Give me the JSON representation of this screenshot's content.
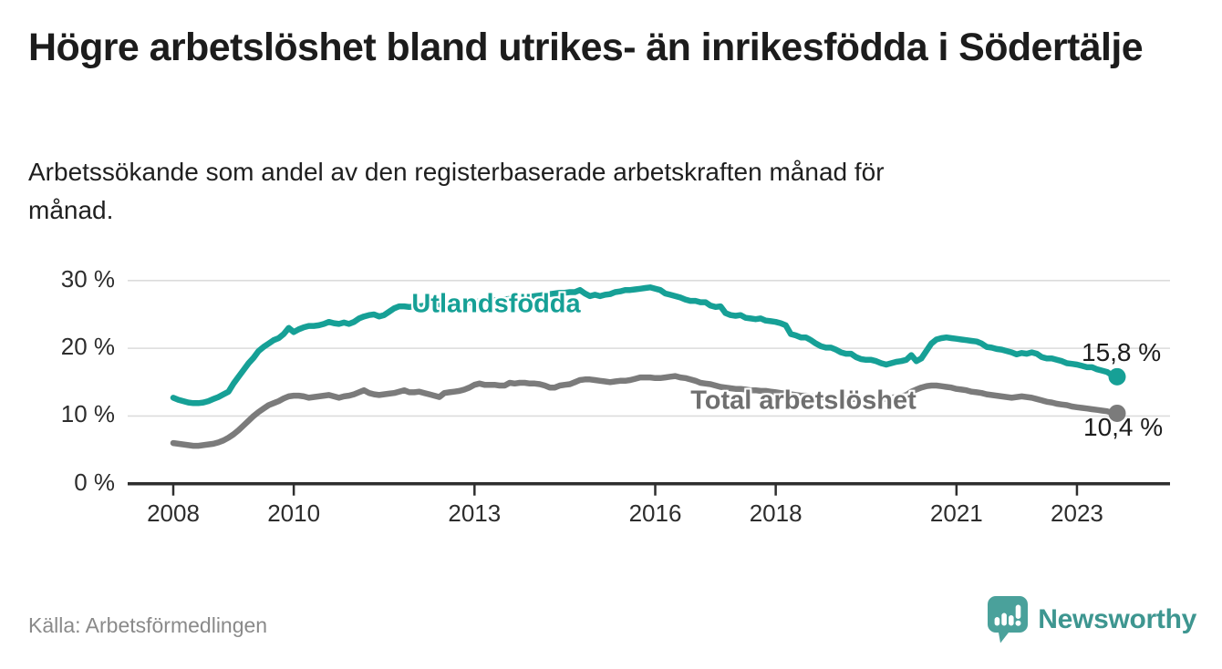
{
  "header": {
    "title": "Högre arbetslöshet bland utrikes- än inrikesfödda i Södertälje",
    "subtitle": "Arbetssökande som andel av den registerbaserade arbetskraften månad för månad."
  },
  "footer": {
    "source": "Källa: Arbetsförmedlingen",
    "logo_text": "Newsworthy",
    "logo_icon": "newsworthy-speech-bubble-bar-chart-icon"
  },
  "colors": {
    "foreign_born_line": "#16a096",
    "total_line": "#7b7b7b",
    "total_label": "#6f6f6f",
    "axis": "#2e2e2e",
    "gridline": "#dcdcdc",
    "title_text": "#1c1c1c",
    "source_text": "#8a8a8a",
    "logo_teal": "#4aa19b",
    "logo_text_teal": "#3e9690"
  },
  "chart_data": {
    "type": "line",
    "unit": "%",
    "frequency": "monthly",
    "x_start": "2008-01",
    "x_end": "2023-09",
    "grid": true,
    "legend_position": "inline-labels-on-lines",
    "ylim": [
      0,
      31.5
    ],
    "y_ticks": [
      {
        "label": "0 %",
        "value": 0
      },
      {
        "label": "10 %",
        "value": 10
      },
      {
        "label": "20 %",
        "value": 20
      },
      {
        "label": "30 %",
        "value": 30
      }
    ],
    "x_ticks": [
      {
        "label": "2008",
        "year": 2008
      },
      {
        "label": "2010",
        "year": 2010
      },
      {
        "label": "2013",
        "year": 2013
      },
      {
        "label": "2016",
        "year": 2016
      },
      {
        "label": "2018",
        "year": 2018
      },
      {
        "label": "2021",
        "year": 2021
      },
      {
        "label": "2023",
        "year": 2023
      }
    ],
    "series": [
      {
        "name": "Utlandsfödda",
        "color": "#16a096",
        "end_label": "15,8 %",
        "end_value": 15.8,
        "values": [
          12.7,
          12.4,
          12.2,
          12.0,
          11.9,
          11.9,
          12.0,
          12.2,
          12.5,
          12.8,
          13.2,
          13.6,
          14.8,
          15.8,
          16.8,
          17.8,
          18.6,
          19.6,
          20.2,
          20.7,
          21.2,
          21.5,
          22.1,
          23.0,
          22.4,
          22.8,
          23.1,
          23.3,
          23.3,
          23.4,
          23.6,
          23.9,
          23.7,
          23.6,
          23.8,
          23.6,
          23.9,
          24.4,
          24.7,
          24.9,
          25.0,
          24.7,
          24.9,
          25.4,
          25.9,
          26.2,
          26.2,
          26.1,
          26.2,
          26.2,
          26.3,
          26.4,
          26.4,
          26.5,
          26.5,
          26.6,
          26.7,
          26.7,
          26.8,
          26.8,
          26.9,
          26.9,
          27.0,
          27.0,
          27.1,
          27.1,
          27.2,
          27.3,
          27.3,
          27.4,
          27.5,
          27.6,
          27.7,
          27.8,
          27.9,
          28.0,
          28.1,
          28.2,
          28.2,
          28.3,
          28.3,
          28.6,
          28.1,
          27.7,
          27.9,
          27.7,
          27.9,
          28.0,
          28.3,
          28.4,
          28.6,
          28.6,
          28.7,
          28.8,
          28.9,
          29.0,
          28.8,
          28.6,
          28.1,
          27.9,
          27.7,
          27.5,
          27.2,
          27.0,
          27.0,
          26.8,
          26.8,
          26.3,
          26.1,
          26.2,
          25.2,
          24.9,
          24.8,
          24.9,
          24.5,
          24.4,
          24.3,
          24.4,
          24.1,
          24.0,
          23.9,
          23.7,
          23.4,
          22.1,
          21.9,
          21.6,
          21.6,
          21.2,
          20.7,
          20.3,
          20.1,
          20.1,
          19.8,
          19.4,
          19.2,
          19.2,
          18.7,
          18.4,
          18.3,
          18.3,
          18.1,
          17.8,
          17.6,
          17.8,
          18.0,
          18.1,
          18.3,
          19.0,
          18.1,
          18.5,
          19.6,
          20.7,
          21.3,
          21.5,
          21.6,
          21.5,
          21.4,
          21.3,
          21.2,
          21.1,
          21.0,
          20.7,
          20.2,
          20.1,
          19.9,
          19.8,
          19.6,
          19.4,
          19.1,
          19.3,
          19.2,
          19.4,
          19.2,
          18.7,
          18.5,
          18.5,
          18.3,
          18.1,
          17.8,
          17.7,
          17.6,
          17.4,
          17.2,
          17.2,
          16.9,
          16.7,
          16.5,
          16.0,
          15.8
        ]
      },
      {
        "name": "Total arbetslöshet",
        "color": "#7b7b7b",
        "end_label": "10,4 %",
        "end_value": 10.4,
        "values": [
          6.0,
          5.9,
          5.8,
          5.7,
          5.6,
          5.6,
          5.7,
          5.8,
          5.9,
          6.1,
          6.4,
          6.8,
          7.3,
          7.9,
          8.6,
          9.3,
          10.0,
          10.6,
          11.1,
          11.6,
          11.9,
          12.2,
          12.6,
          12.9,
          13.0,
          13.0,
          12.9,
          12.7,
          12.8,
          12.9,
          13.0,
          13.1,
          12.9,
          12.7,
          12.9,
          13.0,
          13.2,
          13.5,
          13.8,
          13.4,
          13.2,
          13.1,
          13.2,
          13.3,
          13.4,
          13.6,
          13.8,
          13.5,
          13.5,
          13.6,
          13.4,
          13.2,
          13.0,
          12.8,
          13.4,
          13.5,
          13.6,
          13.7,
          13.9,
          14.2,
          14.6,
          14.8,
          14.6,
          14.6,
          14.6,
          14.5,
          14.5,
          14.9,
          14.8,
          14.9,
          14.9,
          14.8,
          14.8,
          14.7,
          14.5,
          14.2,
          14.2,
          14.5,
          14.6,
          14.7,
          15.0,
          15.3,
          15.4,
          15.4,
          15.3,
          15.2,
          15.1,
          15.0,
          15.1,
          15.2,
          15.2,
          15.3,
          15.5,
          15.7,
          15.7,
          15.7,
          15.6,
          15.6,
          15.7,
          15.8,
          15.9,
          15.7,
          15.6,
          15.4,
          15.2,
          14.9,
          14.8,
          14.7,
          14.5,
          14.3,
          14.2,
          14.1,
          14.0,
          14.0,
          13.9,
          13.8,
          13.8,
          13.7,
          13.7,
          13.6,
          13.5,
          13.4,
          13.3,
          13.2,
          13.1,
          13.0,
          13.0,
          12.9,
          12.8,
          12.8,
          12.7,
          12.7,
          12.7,
          12.6,
          12.6,
          12.5,
          12.5,
          12.6,
          12.6,
          12.6,
          12.5,
          12.5,
          12.6,
          12.7,
          12.8,
          12.9,
          13.1,
          13.6,
          13.9,
          14.2,
          14.4,
          14.5,
          14.5,
          14.4,
          14.3,
          14.2,
          14.0,
          13.9,
          13.8,
          13.6,
          13.5,
          13.4,
          13.2,
          13.1,
          13.0,
          12.9,
          12.8,
          12.7,
          12.8,
          12.9,
          12.8,
          12.7,
          12.5,
          12.3,
          12.1,
          12.0,
          11.8,
          11.7,
          11.6,
          11.4,
          11.3,
          11.2,
          11.1,
          11.0,
          10.9,
          10.8,
          10.7,
          10.5,
          10.4
        ]
      }
    ]
  }
}
